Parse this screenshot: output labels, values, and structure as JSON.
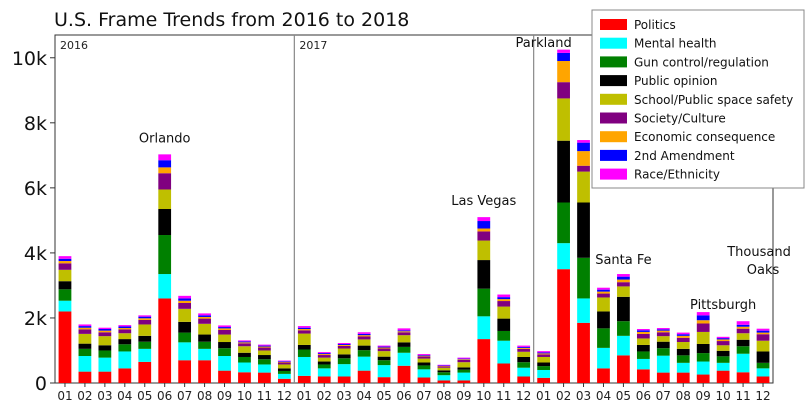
{
  "chart_data": {
    "type": "bar",
    "stacked": true,
    "title": "U.S. Frame Trends from 2016 to 2018",
    "xlabel": "",
    "ylabel": "",
    "ylim": [
      0,
      10700
    ],
    "yticks": [
      0,
      2000,
      4000,
      6000,
      8000,
      10000
    ],
    "ytick_labels": [
      "0",
      "2k",
      "4k",
      "6k",
      "8k",
      "10k"
    ],
    "categories": [
      "01",
      "02",
      "03",
      "04",
      "05",
      "06",
      "07",
      "08",
      "09",
      "10",
      "11",
      "12",
      "01",
      "02",
      "03",
      "04",
      "05",
      "06",
      "07",
      "08",
      "09",
      "10",
      "11",
      "12",
      "01",
      "02",
      "03",
      "04",
      "05",
      "06",
      "07",
      "08",
      "09",
      "10",
      "11",
      "12"
    ],
    "year_labels": [
      {
        "label": "2016",
        "start_index": 0
      },
      {
        "label": "2017",
        "start_index": 12
      },
      {
        "label": "",
        "start_index": 24
      }
    ],
    "grid": false,
    "legend_position": "top-right",
    "series": [
      {
        "name": "Politics",
        "color": "#ff0000",
        "values": [
          2200,
          350,
          350,
          450,
          650,
          2600,
          700,
          700,
          380,
          330,
          320,
          130,
          220,
          200,
          200,
          380,
          180,
          530,
          170,
          80,
          80,
          1350,
          600,
          200,
          160,
          3500,
          1850,
          450,
          850,
          420,
          320,
          320,
          260,
          380,
          330,
          200
        ]
      },
      {
        "name": "Mental health",
        "color": "#00ffff",
        "values": [
          330,
          480,
          430,
          520,
          400,
          750,
          550,
          350,
          450,
          300,
          250,
          150,
          580,
          250,
          380,
          430,
          370,
          400,
          250,
          160,
          240,
          700,
          700,
          270,
          240,
          800,
          750,
          630,
          600,
          320,
          520,
          300,
          400,
          240,
          570,
          250
        ]
      },
      {
        "name": "Gun control/regulation",
        "color": "#008000",
        "values": [
          350,
          220,
          220,
          220,
          220,
          1200,
          300,
          220,
          240,
          170,
          160,
          90,
          230,
          120,
          180,
          200,
          150,
          180,
          120,
          90,
          90,
          850,
          300,
          170,
          120,
          1250,
          1250,
          600,
          450,
          230,
          230,
          230,
          260,
          200,
          230,
          170
        ]
      },
      {
        "name": "Public opinion",
        "color": "#000000",
        "values": [
          250,
          160,
          160,
          160,
          180,
          800,
          330,
          220,
          190,
          130,
          130,
          80,
          140,
          90,
          120,
          140,
          110,
          140,
          90,
          60,
          70,
          880,
          380,
          160,
          110,
          1900,
          1700,
          520,
          750,
          200,
          200,
          200,
          280,
          170,
          200,
          350
        ]
      },
      {
        "name": "School/Public space safety",
        "color": "#bfbf00",
        "values": [
          350,
          300,
          280,
          180,
          350,
          600,
          400,
          330,
          230,
          200,
          140,
          120,
          350,
          120,
          180,
          190,
          170,
          220,
          120,
          80,
          160,
          600,
          370,
          160,
          170,
          1300,
          950,
          430,
          320,
          200,
          170,
          210,
          370,
          170,
          200,
          330
        ]
      },
      {
        "name": "Society/Culture",
        "color": "#800080",
        "values": [
          200,
          140,
          120,
          120,
          140,
          500,
          180,
          160,
          140,
          90,
          90,
          60,
          100,
          80,
          80,
          90,
          80,
          90,
          70,
          40,
          70,
          280,
          170,
          90,
          80,
          500,
          180,
          120,
          130,
          140,
          120,
          130,
          260,
          130,
          140,
          200
        ]
      },
      {
        "name": "Economic consequence",
        "color": "#ffa500",
        "values": [
          70,
          50,
          50,
          40,
          50,
          180,
          70,
          50,
          50,
          30,
          30,
          20,
          40,
          30,
          30,
          40,
          30,
          30,
          20,
          15,
          20,
          90,
          60,
          30,
          30,
          650,
          450,
          60,
          80,
          60,
          50,
          60,
          100,
          50,
          60,
          50
        ]
      },
      {
        "name": "2nd Amendment",
        "color": "#0000ff",
        "values": [
          70,
          50,
          50,
          50,
          50,
          220,
          70,
          50,
          40,
          30,
          30,
          20,
          40,
          30,
          30,
          40,
          30,
          30,
          20,
          15,
          20,
          230,
          60,
          30,
          30,
          250,
          260,
          60,
          90,
          50,
          40,
          50,
          150,
          40,
          60,
          60
        ]
      },
      {
        "name": "Race/Ethnicity",
        "color": "#ff00ff",
        "values": [
          80,
          50,
          40,
          40,
          40,
          180,
          80,
          60,
          50,
          30,
          30,
          20,
          50,
          30,
          30,
          50,
          30,
          60,
          30,
          20,
          30,
          120,
          80,
          40,
          40,
          100,
          80,
          60,
          80,
          40,
          40,
          50,
          100,
          40,
          110,
          60
        ]
      }
    ],
    "annotations": [
      {
        "text": "Orlando",
        "index": 5
      },
      {
        "text": "Las Vegas",
        "index": 21
      },
      {
        "text": "Parkland",
        "index": 24
      },
      {
        "text": "Santa Fe",
        "index": 28
      },
      {
        "text": "Pittsburgh",
        "index": 33
      },
      {
        "text": "Thousand",
        "index": 35
      },
      {
        "text": "Oaks",
        "index": 35
      }
    ]
  }
}
